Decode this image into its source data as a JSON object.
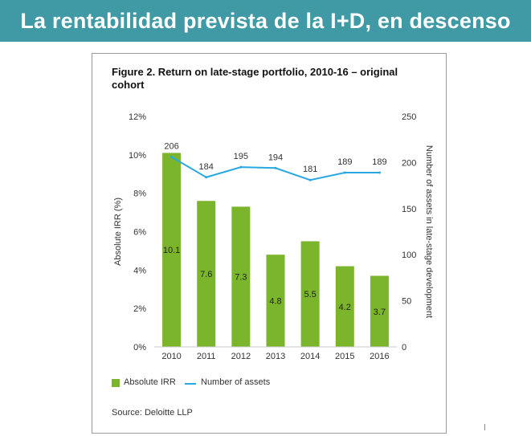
{
  "banner": {
    "text": "La rentabilidad prevista de la I+D, en descenso"
  },
  "figure": {
    "title": "Figure 2. Return on late-stage portfolio, 2010-16 – original cohort",
    "source": "Source: Deloitte LLP"
  },
  "chart_data": {
    "type": "bar",
    "title": "Figure 2. Return on late-stage portfolio, 2010-16 – original cohort",
    "categories": [
      "2010",
      "2011",
      "2012",
      "2013",
      "2014",
      "2015",
      "2016"
    ],
    "series": [
      {
        "name": "Absolute IRR",
        "kind": "bar",
        "axis": "left",
        "values": [
          10.1,
          7.6,
          7.3,
          4.8,
          5.5,
          4.2,
          3.7
        ],
        "labels": [
          "10.1",
          "7.6",
          "7.3",
          "4.8",
          "5.5",
          "4.2",
          "3.7"
        ]
      },
      {
        "name": "Number of assets",
        "kind": "line",
        "axis": "right",
        "values": [
          206,
          184,
          195,
          194,
          181,
          189,
          189
        ],
        "labels": [
          "206",
          "184",
          "195",
          "194",
          "181",
          "189",
          "189"
        ]
      }
    ],
    "ylabel": "Absolute IRR (%)",
    "y2label": "Number of assets in late-stage development",
    "ylim": [
      0,
      12
    ],
    "y2lim": [
      0,
      250
    ],
    "yticks": [
      "0%",
      "2%",
      "4%",
      "6%",
      "8%",
      "10%",
      "12%"
    ],
    "y2ticks": [
      "0",
      "50",
      "100",
      "150",
      "200",
      "250"
    ],
    "grid": false,
    "legend_position": "bottom-left",
    "colors": {
      "bar": "#7ab52b",
      "line": "#29a8e0"
    }
  }
}
